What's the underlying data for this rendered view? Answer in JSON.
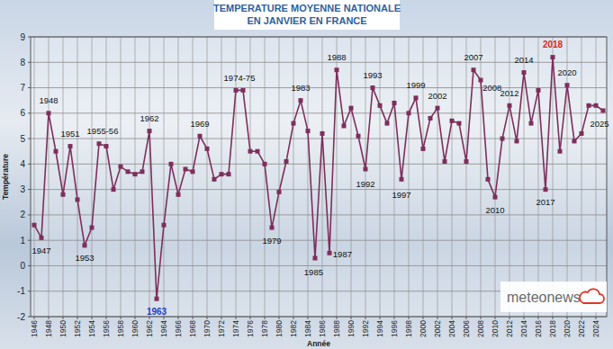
{
  "chart_data": {
    "type": "line",
    "title": "TEMPERATURE MOYENNE NATIONALE",
    "subtitle": "EN JANVIER EN FRANCE",
    "x_label": "Année",
    "y_label": "Température",
    "logo": "meteonews",
    "color": "#7d2f5c",
    "marker": "square",
    "grid": true,
    "x": [
      1946,
      1947,
      1948,
      1949,
      1950,
      1951,
      1952,
      1953,
      1954,
      1955,
      1956,
      1957,
      1958,
      1959,
      1960,
      1961,
      1962,
      1963,
      1964,
      1965,
      1966,
      1967,
      1968,
      1969,
      1970,
      1971,
      1972,
      1973,
      1974,
      1975,
      1976,
      1977,
      1978,
      1979,
      1980,
      1981,
      1982,
      1983,
      1984,
      1985,
      1986,
      1987,
      1988,
      1989,
      1990,
      1991,
      1992,
      1993,
      1994,
      1995,
      1996,
      1997,
      1998,
      1999,
      2000,
      2001,
      2002,
      2003,
      2004,
      2005,
      2006,
      2007,
      2008,
      2009,
      2010,
      2011,
      2012,
      2013,
      2014,
      2015,
      2016,
      2017,
      2018,
      2019,
      2020,
      2021,
      2022,
      2023,
      2024,
      2025
    ],
    "values": [
      1.6,
      1.1,
      6.0,
      4.5,
      2.8,
      4.7,
      2.6,
      0.8,
      1.5,
      4.8,
      4.7,
      3.0,
      3.9,
      3.7,
      3.6,
      3.7,
      5.3,
      -1.3,
      1.6,
      4.0,
      2.8,
      3.8,
      3.7,
      5.1,
      4.6,
      3.4,
      3.6,
      3.6,
      6.9,
      6.9,
      4.5,
      4.5,
      4.0,
      1.5,
      2.9,
      4.1,
      5.6,
      6.5,
      5.3,
      0.3,
      5.2,
      0.5,
      7.7,
      5.5,
      6.2,
      5.1,
      3.8,
      7.0,
      6.3,
      5.6,
      6.4,
      3.4,
      6.0,
      6.6,
      4.6,
      5.8,
      6.2,
      4.1,
      5.7,
      5.6,
      4.1,
      7.7,
      7.3,
      3.4,
      2.7,
      5.0,
      6.3,
      4.9,
      7.6,
      5.6,
      6.9,
      3.0,
      8.2,
      4.5,
      7.1,
      4.9,
      5.2,
      6.3,
      6.3,
      6.1
    ],
    "xlim": [
      1945.5,
      2025.5
    ],
    "xticks": [
      1946,
      1948,
      1950,
      1952,
      1954,
      1956,
      1958,
      1960,
      1962,
      1964,
      1966,
      1968,
      1970,
      1972,
      1974,
      1976,
      1978,
      1980,
      1982,
      1984,
      1986,
      1988,
      1990,
      1992,
      1994,
      1996,
      1998,
      2000,
      2002,
      2004,
      2006,
      2008,
      2010,
      2012,
      2014,
      2016,
      2018,
      2020,
      2022,
      2024
    ],
    "ylim": [
      -2,
      9
    ],
    "yticks": [
      -2,
      -1,
      0,
      1,
      2,
      3,
      4,
      5,
      6,
      7,
      8,
      9
    ],
    "annotations": [
      {
        "text": "1947",
        "x": 1947,
        "y": 0.6
      },
      {
        "text": "1948",
        "x": 1948,
        "y": 6.5
      },
      {
        "text": "1951",
        "x": 1951,
        "y": 5.2
      },
      {
        "text": "1953",
        "x": 1953,
        "y": 0.3
      },
      {
        "text": "1955-56",
        "x": 1955.5,
        "y": 5.3
      },
      {
        "text": "1962",
        "x": 1962,
        "y": 5.8
      },
      {
        "text": "1963",
        "x": 1963,
        "y": -1.8,
        "color": "#1f3fbf"
      },
      {
        "text": "1969",
        "x": 1969,
        "y": 5.6
      },
      {
        "text": "1974-75",
        "x": 1974.5,
        "y": 7.4
      },
      {
        "text": "1979",
        "x": 1979,
        "y": 1.0
      },
      {
        "text": "1983",
        "x": 1983,
        "y": 7.0
      },
      {
        "text": "1985",
        "x": 1984.8,
        "y": -0.25
      },
      {
        "text": "1987",
        "x": 1988.8,
        "y": 0.45
      },
      {
        "text": "1988",
        "x": 1988,
        "y": 8.2
      },
      {
        "text": "1992",
        "x": 1992,
        "y": 3.2
      },
      {
        "text": "1993",
        "x": 1993,
        "y": 7.5
      },
      {
        "text": "1997",
        "x": 1997,
        "y": 2.8
      },
      {
        "text": "1999",
        "x": 1999,
        "y": 7.1
      },
      {
        "text": "2002",
        "x": 2002,
        "y": 6.7
      },
      {
        "text": "2007",
        "x": 2007,
        "y": 8.2
      },
      {
        "text": "2008",
        "x": 2009.6,
        "y": 7.0
      },
      {
        "text": "2010",
        "x": 2010,
        "y": 2.2
      },
      {
        "text": "2012",
        "x": 2012,
        "y": 6.8
      },
      {
        "text": "2014",
        "x": 2014,
        "y": 8.1
      },
      {
        "text": "2017",
        "x": 2017,
        "y": 2.5
      },
      {
        "text": "2018",
        "x": 2018,
        "y": 8.7,
        "color": "#d9281e"
      },
      {
        "text": "2020",
        "x": 2020,
        "y": 7.6
      },
      {
        "text": "2025",
        "x": 2024.5,
        "y": 5.6
      }
    ]
  }
}
